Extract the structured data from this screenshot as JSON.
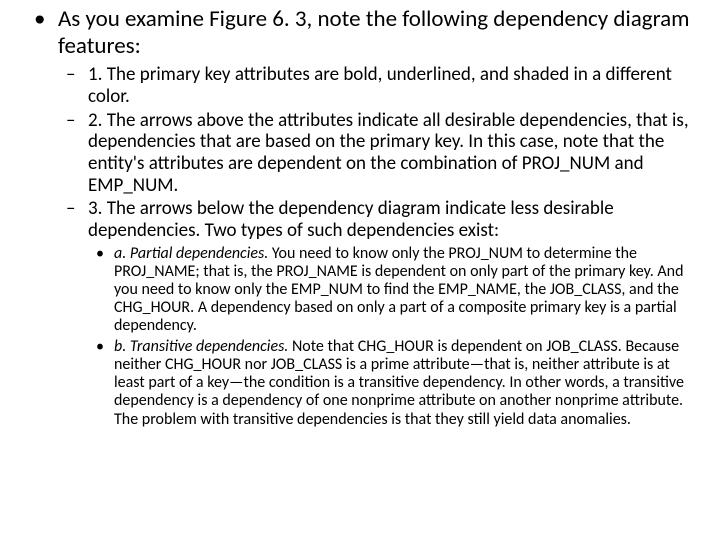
{
  "typography": {
    "font_family": "Calibri",
    "lvl1_fontsize_pt": 17,
    "lvl2_fontsize_pt": 14,
    "lvl3_fontsize_pt": 12,
    "text_color": "#000000",
    "background_color": "#ffffff"
  },
  "bullets": {
    "lvl1_marker": "•",
    "lvl2_marker": "–",
    "lvl3_marker": "•"
  },
  "content": {
    "lvl1_text": "As you examine Figure 6. 3, note the following dependency diagram features:",
    "lvl2": [
      "1. The primary key attributes are bold, underlined, and shaded in a different color.",
      "2. The arrows above the attributes indicate all desirable dependencies, that is, dependencies that are based on the primary key. In this case, note that the entity's attributes are dependent on the combination of PROJ_NUM and EMP_NUM.",
      "3. The arrows below the dependency diagram indicate less desirable dependencies. Two types of such dependencies exist:"
    ],
    "lvl3": [
      {
        "label_italic": "a. Partial dependencies.",
        "rest": " You need to know only the PROJ_NUM to determine the PROJ_NAME; that is, the PROJ_NAME is dependent on only part of the primary key. And you need to know only the EMP_NUM to find the EMP_NAME, the JOB_CLASS, and the CHG_HOUR. A dependency based on only a part of a composite primary key is a partial dependency."
      },
      {
        "label_italic": "b. Transitive dependencies.",
        "rest": " Note that CHG_HOUR is dependent on JOB_CLASS. Because neither CHG_HOUR nor JOB_CLASS is a prime attribute—that is, neither attribute is at least part of a key—the condition is a transitive dependency. In other words, a transitive dependency is a dependency of one nonprime attribute on another nonprime attribute. The problem with transitive dependencies is that they still yield data anomalies."
      }
    ]
  }
}
